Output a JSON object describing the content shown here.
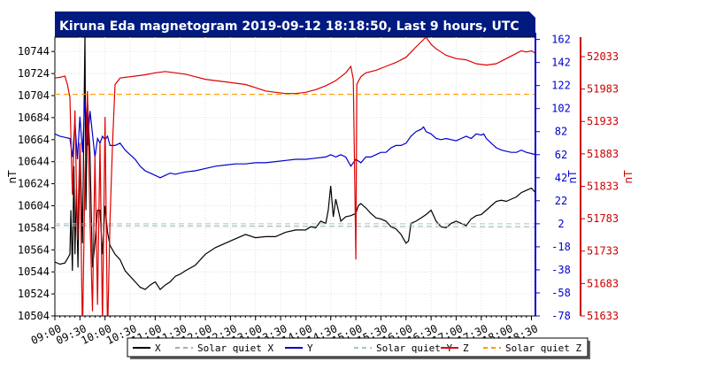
{
  "chart_data": {
    "type": "line",
    "title": "Kiruna Eda magnetogram 2019-09-12 18:18:50, Last 9 hours, UTC",
    "x_ticks": [
      "09:00",
      "09:30",
      "10:00",
      "10:30",
      "11:00",
      "11:30",
      "12:00",
      "12:30",
      "13:00",
      "13:30",
      "14:00",
      "14:30",
      "15:00",
      "15:30",
      "16:00",
      "16:30",
      "17:00",
      "17:30",
      "18:00",
      "18:30"
    ],
    "x_range_hours": [
      9.0,
      18.58
    ],
    "axes": {
      "left": {
        "label": "nT",
        "color": "#000000",
        "ylim": [
          10504,
          10757
        ],
        "ticks": [
          10504,
          10524,
          10544,
          10564,
          10584,
          10604,
          10624,
          10644,
          10664,
          10684,
          10704,
          10724,
          10744
        ]
      },
      "mid": {
        "label": "nT",
        "color": "#0000cc",
        "ylim": [
          -78,
          164
        ],
        "ticks": [
          -78,
          -58,
          -38,
          -18,
          2,
          22,
          42,
          62,
          82,
          102,
          122,
          142,
          162
        ]
      },
      "right": {
        "label": "nT",
        "color": "#cc0000",
        "ylim": [
          51633,
          52063
        ],
        "ticks": [
          51633,
          51683,
          51733,
          51783,
          51833,
          51883,
          51933,
          51983,
          52033
        ]
      }
    },
    "series": [
      {
        "name": "X",
        "color": "#000000",
        "axis": "left",
        "style": "solid",
        "x": [
          9.0,
          9.1,
          9.2,
          9.25,
          9.3,
          9.32,
          9.35,
          9.38,
          9.4,
          9.43,
          9.46,
          9.5,
          9.55,
          9.6,
          9.62,
          9.65,
          9.7,
          9.75,
          9.8,
          9.85,
          9.9,
          9.95,
          10.0,
          10.05,
          10.1,
          10.2,
          10.3,
          10.4,
          10.5,
          10.6,
          10.7,
          10.8,
          10.9,
          11.0,
          11.1,
          11.2,
          11.3,
          11.4,
          11.5,
          11.6,
          11.8,
          12.0,
          12.2,
          12.4,
          12.6,
          12.8,
          13.0,
          13.2,
          13.4,
          13.6,
          13.8,
          14.0,
          14.1,
          14.2,
          14.3,
          14.4,
          14.45,
          14.5,
          14.55,
          14.6,
          14.7,
          14.8,
          14.9,
          15.0,
          15.02,
          15.05,
          15.1,
          15.2,
          15.3,
          15.4,
          15.5,
          15.6,
          15.7,
          15.8,
          15.9,
          16.0,
          16.05,
          16.1,
          16.2,
          16.3,
          16.4,
          16.5,
          16.6,
          16.7,
          16.8,
          16.9,
          17.0,
          17.1,
          17.2,
          17.3,
          17.4,
          17.5,
          17.6,
          17.7,
          17.8,
          17.9,
          18.0,
          18.1,
          18.2,
          18.3,
          18.4,
          18.5,
          18.58
        ],
        "y": [
          10553,
          10551,
          10552,
          10556,
          10560,
          10600,
          10545,
          10640,
          10560,
          10620,
          10548,
          10660,
          10570,
          10760,
          10600,
          10700,
          10650,
          10548,
          10570,
          10600,
          10600,
          10560,
          10604,
          10580,
          10568,
          10560,
          10555,
          10545,
          10540,
          10535,
          10530,
          10528,
          10532,
          10535,
          10528,
          10532,
          10535,
          10540,
          10542,
          10545,
          10550,
          10560,
          10566,
          10570,
          10574,
          10578,
          10575,
          10576,
          10576,
          10580,
          10582,
          10582,
          10585,
          10584,
          10590,
          10588,
          10600,
          10622,
          10594,
          10610,
          10590,
          10594,
          10595,
          10597,
          10600,
          10604,
          10606,
          10602,
          10597,
          10593,
          10592,
          10590,
          10585,
          10583,
          10578,
          10570,
          10572,
          10588,
          10590,
          10593,
          10596,
          10600,
          10590,
          10585,
          10584,
          10588,
          10590,
          10588,
          10586,
          10592,
          10595,
          10596,
          10600,
          10604,
          10608,
          10609,
          10608,
          10610,
          10612,
          10616,
          10618,
          10620,
          10616
        ]
      },
      {
        "name": "Solar quiet X",
        "color": "#aaaaaa",
        "axis": "left",
        "style": "dashed",
        "x": [
          9.0,
          18.58
        ],
        "y": [
          10586,
          10585
        ]
      },
      {
        "name": "Y",
        "color": "#0000cc",
        "axis": "mid",
        "style": "solid",
        "x": [
          9.0,
          9.1,
          9.2,
          9.3,
          9.35,
          9.4,
          9.45,
          9.5,
          9.55,
          9.6,
          9.65,
          9.7,
          9.75,
          9.8,
          9.85,
          9.9,
          9.95,
          10.0,
          10.05,
          10.1,
          10.2,
          10.3,
          10.4,
          10.5,
          10.6,
          10.7,
          10.8,
          10.9,
          11.0,
          11.1,
          11.2,
          11.3,
          11.4,
          11.5,
          11.6,
          11.8,
          12.0,
          12.2,
          12.4,
          12.6,
          12.8,
          13.0,
          13.2,
          13.4,
          13.6,
          13.8,
          14.0,
          14.2,
          14.4,
          14.5,
          14.6,
          14.7,
          14.8,
          14.9,
          15.0,
          15.1,
          15.2,
          15.3,
          15.4,
          15.5,
          15.6,
          15.7,
          15.8,
          15.9,
          16.0,
          16.1,
          16.2,
          16.3,
          16.35,
          16.4,
          16.5,
          16.6,
          16.7,
          16.8,
          16.9,
          17.0,
          17.1,
          17.2,
          17.3,
          17.4,
          17.5,
          17.55,
          17.6,
          17.7,
          17.8,
          17.9,
          18.0,
          18.1,
          18.2,
          18.3,
          18.4,
          18.5,
          18.58
        ],
        "y": [
          80,
          78,
          77,
          76,
          60,
          90,
          58,
          95,
          64,
          110,
          70,
          100,
          80,
          60,
          76,
          72,
          78,
          75,
          78,
          70,
          70,
          72,
          66,
          62,
          58,
          52,
          48,
          46,
          44,
          42,
          44,
          46,
          45,
          46,
          47,
          48,
          50,
          52,
          53,
          54,
          54,
          55,
          55,
          56,
          57,
          58,
          58,
          59,
          60,
          62,
          60,
          62,
          60,
          52,
          58,
          55,
          60,
          60,
          62,
          64,
          64,
          68,
          70,
          70,
          72,
          78,
          82,
          84,
          86,
          82,
          80,
          76,
          75,
          76,
          75,
          74,
          76,
          78,
          76,
          80,
          79,
          80,
          76,
          72,
          68,
          66,
          65,
          64,
          64,
          66,
          64,
          63,
          62
        ]
      },
      {
        "name": "Solar quiet Y",
        "color": "#99cccc",
        "axis": "mid",
        "style": "dashed",
        "x": [
          9.0,
          18.58
        ],
        "y": [
          2,
          2
        ]
      },
      {
        "name": "Z",
        "color": "#dd0000",
        "axis": "right",
        "style": "solid",
        "x": [
          9.0,
          9.1,
          9.2,
          9.25,
          9.3,
          9.35,
          9.4,
          9.45,
          9.5,
          9.55,
          9.6,
          9.65,
          9.7,
          9.75,
          9.8,
          9.85,
          9.9,
          9.95,
          10.0,
          10.05,
          10.1,
          10.15,
          10.2,
          10.3,
          10.4,
          10.5,
          10.6,
          10.8,
          11.0,
          11.2,
          11.4,
          11.6,
          11.8,
          12.0,
          12.2,
          12.4,
          12.6,
          12.8,
          13.0,
          13.2,
          13.4,
          13.6,
          13.8,
          14.0,
          14.2,
          14.4,
          14.6,
          14.8,
          14.9,
          14.95,
          15.0,
          15.02,
          15.05,
          15.1,
          15.2,
          15.4,
          15.6,
          15.8,
          16.0,
          16.2,
          16.4,
          16.5,
          16.6,
          16.8,
          17.0,
          17.2,
          17.4,
          17.6,
          17.8,
          18.0,
          18.2,
          18.3,
          18.4,
          18.5,
          18.58
        ],
        "y": [
          52000,
          52001,
          52003,
          51990,
          51970,
          51820,
          51950,
          51750,
          51900,
          51600,
          51850,
          51980,
          51780,
          51640,
          51880,
          51650,
          51900,
          51620,
          51940,
          51600,
          51780,
          51900,
          51990,
          52000,
          52001,
          52002,
          52003,
          52005,
          52008,
          52010,
          52008,
          52006,
          52002,
          51998,
          51996,
          51994,
          51992,
          51990,
          51985,
          51980,
          51978,
          51976,
          51976,
          51978,
          51982,
          51988,
          51996,
          52008,
          52018,
          51998,
          51720,
          51990,
          51995,
          52002,
          52008,
          52012,
          52018,
          52024,
          52032,
          52048,
          52063,
          52052,
          52045,
          52035,
          52030,
          52028,
          52022,
          52020,
          52022,
          52030,
          52038,
          52042,
          52040,
          52042,
          52038
        ]
      },
      {
        "name": "Solar quiet Z",
        "color": "#ff9900",
        "axis": "right",
        "style": "dashed",
        "x": [
          9.0,
          18.58
        ],
        "y": [
          51975,
          51975
        ]
      }
    ]
  }
}
